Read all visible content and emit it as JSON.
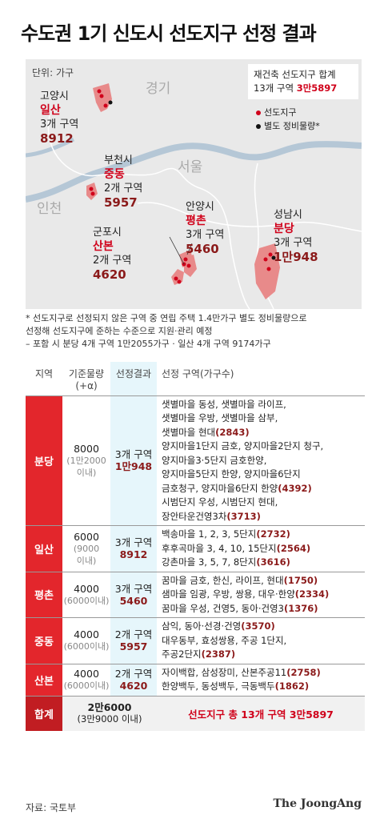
{
  "title": "수도권 1기 신도시 선도지구 선정 결과",
  "map": {
    "unit_label": "단위: 가구",
    "regions": {
      "gyeonggi": "경기",
      "seoul": "서울",
      "incheon": "인천"
    },
    "summary": {
      "line1": "재건축 선도지구 합계",
      "line2_prefix": "13개 구역 ",
      "line2_value": "3만5897"
    },
    "legend": {
      "selected": "선도지구",
      "separate": "별도 정비물량*"
    },
    "districts": [
      {
        "city": "고양시",
        "name": "일산",
        "zones": "3개 구역",
        "households": "8912"
      },
      {
        "city": "부천시",
        "name": "중동",
        "zones": "2개 구역",
        "households": "5957"
      },
      {
        "city": "안양시",
        "name": "평촌",
        "zones": "3개 구역",
        "households": "5460"
      },
      {
        "city": "성남시",
        "name": "분당",
        "zones": "3개 구역",
        "households": "1만948"
      },
      {
        "city": "군포시",
        "name": "산본",
        "zones": "2개 구역",
        "households": "4620"
      }
    ],
    "colors": {
      "highlight": "#e88a8a",
      "river": "#b5c7d6",
      "accent": "#d0021b"
    }
  },
  "notes": {
    "line1": "* 선도지구로 선정되지 않은 구역 중 연립 주택 1.4만가구 별도 정비물량으로",
    "line2": "  선정해 선도지구에 준하는 수준으로 지원·관리 예정",
    "line3": "– 포함 시 분당 4개 구역 1만2055가구 · 일산 4개 구역 9174가구"
  },
  "table": {
    "headers": {
      "region": "지역",
      "base": "기준물량",
      "base_sub": "(+α)",
      "result": "선정결과",
      "zones": "선정 구역(가구수)"
    },
    "rows": [
      {
        "region": "분당",
        "base": "8000",
        "base_sub": "(1만2000",
        "base_sub2": "이내)",
        "result": "3개 구역",
        "result_n": "1만948",
        "zones": [
          {
            "t": "샛별마을 동성, 샛별마을 라이프,",
            "n": ""
          },
          {
            "t": "샛별마을 우방, 샛별마을 삼부,",
            "n": ""
          },
          {
            "t": "샛별마을 현대",
            "n": "(2843)"
          },
          {
            "t": "양지마을1단지 금호, 양지마을2단지 청구,",
            "n": ""
          },
          {
            "t": "양지마을3·5단지 금호한양,",
            "n": ""
          },
          {
            "t": "양지마을5단지 한양, 양지마을6단지",
            "n": ""
          },
          {
            "t": "금호청구, 양지마을6단지 한양",
            "n": "(4392)"
          },
          {
            "t": "시범단지 우성, 시범단지 현대,",
            "n": ""
          },
          {
            "t": "장안타운건영3차",
            "n": "(3713)"
          }
        ]
      },
      {
        "region": "일산",
        "base": "6000",
        "base_sub": "(9000",
        "base_sub2": "이내)",
        "result": "3개 구역",
        "result_n": "8912",
        "zones": [
          {
            "t": "백송마을 1, 2, 3, 5단지",
            "n": "(2732)"
          },
          {
            "t": "후후곡마을 3, 4, 10, 15단지",
            "n": "(2564)"
          },
          {
            "t": "강촌마을 3, 5, 7, 8단지",
            "n": "(3616)"
          }
        ]
      },
      {
        "region": "평촌",
        "base": "4000",
        "base_sub": "(6000이내)",
        "base_sub2": "",
        "result": "3개 구역",
        "result_n": "5460",
        "zones": [
          {
            "t": "꿈마을 금호, 한신, 라이프, 현대",
            "n": "(1750)"
          },
          {
            "t": "샘마을 임광, 우방, 쌍용, 대우·한양",
            "n": "(2334)"
          },
          {
            "t": "꿈마을 우성, 건영5, 동아·건영3",
            "n": "(1376)"
          }
        ]
      },
      {
        "region": "중동",
        "base": "4000",
        "base_sub": "(6000이내)",
        "base_sub2": "",
        "result": "2개 구역",
        "result_n": "5957",
        "zones": [
          {
            "t": "삼익, 동아·선경·건영",
            "n": "(3570)"
          },
          {
            "t": "대우동부, 효성쌍용, 주공 1단지,",
            "n": ""
          },
          {
            "t": "주공2단지",
            "n": "(2387)"
          }
        ]
      },
      {
        "region": "산본",
        "base": "4000",
        "base_sub": "(6000이내)",
        "base_sub2": "",
        "result": "2개 구역",
        "result_n": "4620",
        "zones": [
          {
            "t": "자이백합, 삼성장미, 산본주공11",
            "n": "(2758)"
          },
          {
            "t": "한양백두, 동성백두, 극동백두",
            "n": "(1862)"
          }
        ]
      }
    ],
    "total": {
      "label": "합계",
      "base": "2만6000",
      "base_sub": "(3만9000 이내)",
      "summary": "선도지구 총 13개 구역 3만5897"
    }
  },
  "footer": {
    "source": "자료: 국토부",
    "brand": "The JoongAng"
  }
}
